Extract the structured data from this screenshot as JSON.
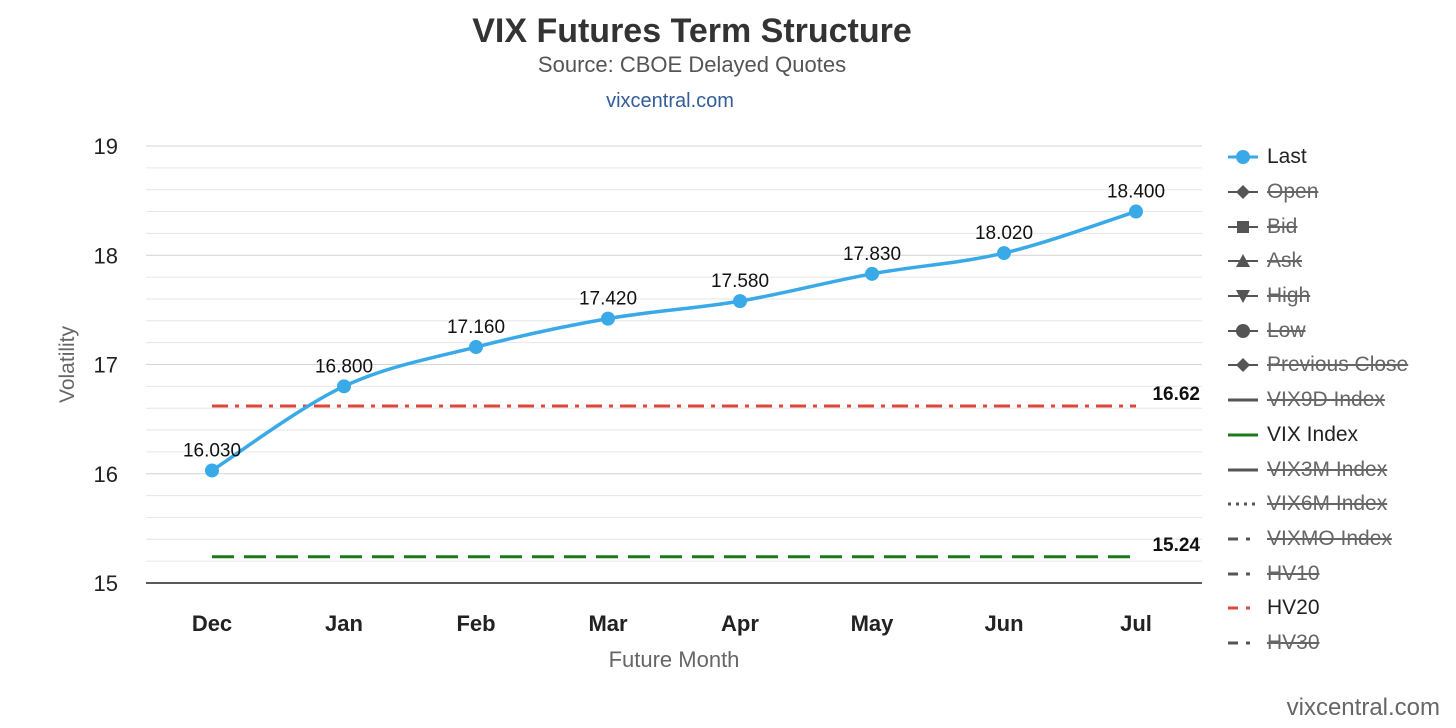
{
  "header": {
    "title": "VIX Futures Term Structure",
    "subtitle": "Source: CBOE Delayed Quotes",
    "link": "vixcentral.com"
  },
  "watermark": "vixcentral.com",
  "legend": {
    "items": [
      {
        "label": "Last",
        "active": true,
        "symbol": "circle-line",
        "color": "#3aa9e8"
      },
      {
        "label": "Open",
        "active": false,
        "symbol": "diamond",
        "color": "#555555"
      },
      {
        "label": "Bid",
        "active": false,
        "symbol": "square",
        "color": "#555555"
      },
      {
        "label": "Ask",
        "active": false,
        "symbol": "triangle-up",
        "color": "#555555"
      },
      {
        "label": "High",
        "active": false,
        "symbol": "triangle-down",
        "color": "#555555"
      },
      {
        "label": "Low",
        "active": false,
        "symbol": "circle",
        "color": "#555555"
      },
      {
        "label": "Previous Close",
        "active": false,
        "symbol": "diamond",
        "color": "#555555"
      },
      {
        "label": "VIX9D Index",
        "active": false,
        "symbol": "solid",
        "color": "#555555"
      },
      {
        "label": "VIX Index",
        "active": true,
        "symbol": "solid",
        "color": "#1a7a1a"
      },
      {
        "label": "VIX3M Index",
        "active": false,
        "symbol": "solid",
        "color": "#555555"
      },
      {
        "label": "VIX6M Index",
        "active": false,
        "symbol": "dotted",
        "color": "#555555"
      },
      {
        "label": "VIXMO Index",
        "active": false,
        "symbol": "dashdot",
        "color": "#555555"
      },
      {
        "label": "HV10",
        "active": false,
        "symbol": "dashdot",
        "color": "#555555"
      },
      {
        "label": "HV20",
        "active": true,
        "symbol": "dashdot",
        "color": "#e0453a"
      },
      {
        "label": "HV30",
        "active": false,
        "symbol": "dashdot",
        "color": "#555555"
      }
    ]
  },
  "chart_data": {
    "type": "line",
    "title": "VIX Futures Term Structure",
    "subtitle": "Source: CBOE Delayed Quotes",
    "xlabel": "Future Month",
    "ylabel": "Volatility",
    "categories": [
      "Dec",
      "Jan",
      "Feb",
      "Mar",
      "Apr",
      "May",
      "Jun",
      "Jul"
    ],
    "ylim": [
      15,
      19
    ],
    "yticks": [
      "15",
      "16",
      "17",
      "18",
      "19"
    ],
    "grid": true,
    "legend_position": "right",
    "series": [
      {
        "name": "Last",
        "color": "#3aa9e8",
        "style": "solid-smooth",
        "values": [
          16.03,
          16.8,
          17.16,
          17.42,
          17.58,
          17.83,
          18.02,
          18.4
        ],
        "labels": [
          "16.030",
          "16.800",
          "17.160",
          "17.420",
          "17.580",
          "17.830",
          "18.020",
          "18.400"
        ]
      }
    ],
    "reference_lines": [
      {
        "name": "HV20",
        "value": 16.62,
        "label": "16.62",
        "color": "#e0453a",
        "style": "dashdot"
      },
      {
        "name": "VIX Index",
        "value": 15.24,
        "label": "15.24",
        "color": "#1a7a1a",
        "style": "dash"
      }
    ]
  }
}
